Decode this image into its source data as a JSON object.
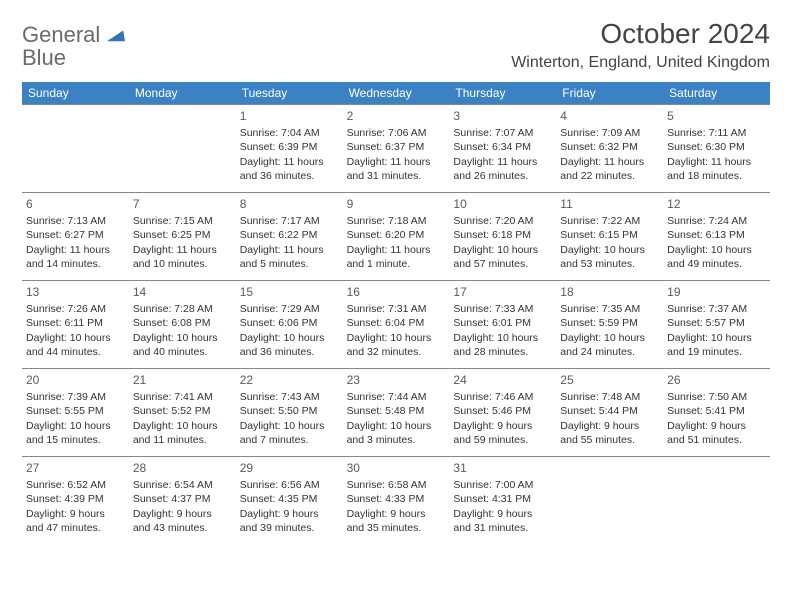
{
  "logo": {
    "brand_a": "General",
    "brand_b": "Blue"
  },
  "title": "October 2024",
  "location": "Winterton, England, United Kingdom",
  "colors": {
    "header_bg": "#3b82c4",
    "header_text": "#ffffff",
    "cell_border": "#888888",
    "body_text": "#333333",
    "logo_gray": "#6b6b6b",
    "logo_blue": "#2f74b5",
    "page_bg": "#ffffff"
  },
  "day_headers": [
    "Sunday",
    "Monday",
    "Tuesday",
    "Wednesday",
    "Thursday",
    "Friday",
    "Saturday"
  ],
  "leading_blanks": 2,
  "days": [
    {
      "n": 1,
      "sunrise": "7:04 AM",
      "sunset": "6:39 PM",
      "daylight": "11 hours and 36 minutes."
    },
    {
      "n": 2,
      "sunrise": "7:06 AM",
      "sunset": "6:37 PM",
      "daylight": "11 hours and 31 minutes."
    },
    {
      "n": 3,
      "sunrise": "7:07 AM",
      "sunset": "6:34 PM",
      "daylight": "11 hours and 26 minutes."
    },
    {
      "n": 4,
      "sunrise": "7:09 AM",
      "sunset": "6:32 PM",
      "daylight": "11 hours and 22 minutes."
    },
    {
      "n": 5,
      "sunrise": "7:11 AM",
      "sunset": "6:30 PM",
      "daylight": "11 hours and 18 minutes."
    },
    {
      "n": 6,
      "sunrise": "7:13 AM",
      "sunset": "6:27 PM",
      "daylight": "11 hours and 14 minutes."
    },
    {
      "n": 7,
      "sunrise": "7:15 AM",
      "sunset": "6:25 PM",
      "daylight": "11 hours and 10 minutes."
    },
    {
      "n": 8,
      "sunrise": "7:17 AM",
      "sunset": "6:22 PM",
      "daylight": "11 hours and 5 minutes."
    },
    {
      "n": 9,
      "sunrise": "7:18 AM",
      "sunset": "6:20 PM",
      "daylight": "11 hours and 1 minute."
    },
    {
      "n": 10,
      "sunrise": "7:20 AM",
      "sunset": "6:18 PM",
      "daylight": "10 hours and 57 minutes."
    },
    {
      "n": 11,
      "sunrise": "7:22 AM",
      "sunset": "6:15 PM",
      "daylight": "10 hours and 53 minutes."
    },
    {
      "n": 12,
      "sunrise": "7:24 AM",
      "sunset": "6:13 PM",
      "daylight": "10 hours and 49 minutes."
    },
    {
      "n": 13,
      "sunrise": "7:26 AM",
      "sunset": "6:11 PM",
      "daylight": "10 hours and 44 minutes."
    },
    {
      "n": 14,
      "sunrise": "7:28 AM",
      "sunset": "6:08 PM",
      "daylight": "10 hours and 40 minutes."
    },
    {
      "n": 15,
      "sunrise": "7:29 AM",
      "sunset": "6:06 PM",
      "daylight": "10 hours and 36 minutes."
    },
    {
      "n": 16,
      "sunrise": "7:31 AM",
      "sunset": "6:04 PM",
      "daylight": "10 hours and 32 minutes."
    },
    {
      "n": 17,
      "sunrise": "7:33 AM",
      "sunset": "6:01 PM",
      "daylight": "10 hours and 28 minutes."
    },
    {
      "n": 18,
      "sunrise": "7:35 AM",
      "sunset": "5:59 PM",
      "daylight": "10 hours and 24 minutes."
    },
    {
      "n": 19,
      "sunrise": "7:37 AM",
      "sunset": "5:57 PM",
      "daylight": "10 hours and 19 minutes."
    },
    {
      "n": 20,
      "sunrise": "7:39 AM",
      "sunset": "5:55 PM",
      "daylight": "10 hours and 15 minutes."
    },
    {
      "n": 21,
      "sunrise": "7:41 AM",
      "sunset": "5:52 PM",
      "daylight": "10 hours and 11 minutes."
    },
    {
      "n": 22,
      "sunrise": "7:43 AM",
      "sunset": "5:50 PM",
      "daylight": "10 hours and 7 minutes."
    },
    {
      "n": 23,
      "sunrise": "7:44 AM",
      "sunset": "5:48 PM",
      "daylight": "10 hours and 3 minutes."
    },
    {
      "n": 24,
      "sunrise": "7:46 AM",
      "sunset": "5:46 PM",
      "daylight": "9 hours and 59 minutes."
    },
    {
      "n": 25,
      "sunrise": "7:48 AM",
      "sunset": "5:44 PM",
      "daylight": "9 hours and 55 minutes."
    },
    {
      "n": 26,
      "sunrise": "7:50 AM",
      "sunset": "5:41 PM",
      "daylight": "9 hours and 51 minutes."
    },
    {
      "n": 27,
      "sunrise": "6:52 AM",
      "sunset": "4:39 PM",
      "daylight": "9 hours and 47 minutes."
    },
    {
      "n": 28,
      "sunrise": "6:54 AM",
      "sunset": "4:37 PM",
      "daylight": "9 hours and 43 minutes."
    },
    {
      "n": 29,
      "sunrise": "6:56 AM",
      "sunset": "4:35 PM",
      "daylight": "9 hours and 39 minutes."
    },
    {
      "n": 30,
      "sunrise": "6:58 AM",
      "sunset": "4:33 PM",
      "daylight": "9 hours and 35 minutes."
    },
    {
      "n": 31,
      "sunrise": "7:00 AM",
      "sunset": "4:31 PM",
      "daylight": "9 hours and 31 minutes."
    }
  ],
  "labels": {
    "sunrise": "Sunrise:",
    "sunset": "Sunset:",
    "daylight": "Daylight:"
  }
}
